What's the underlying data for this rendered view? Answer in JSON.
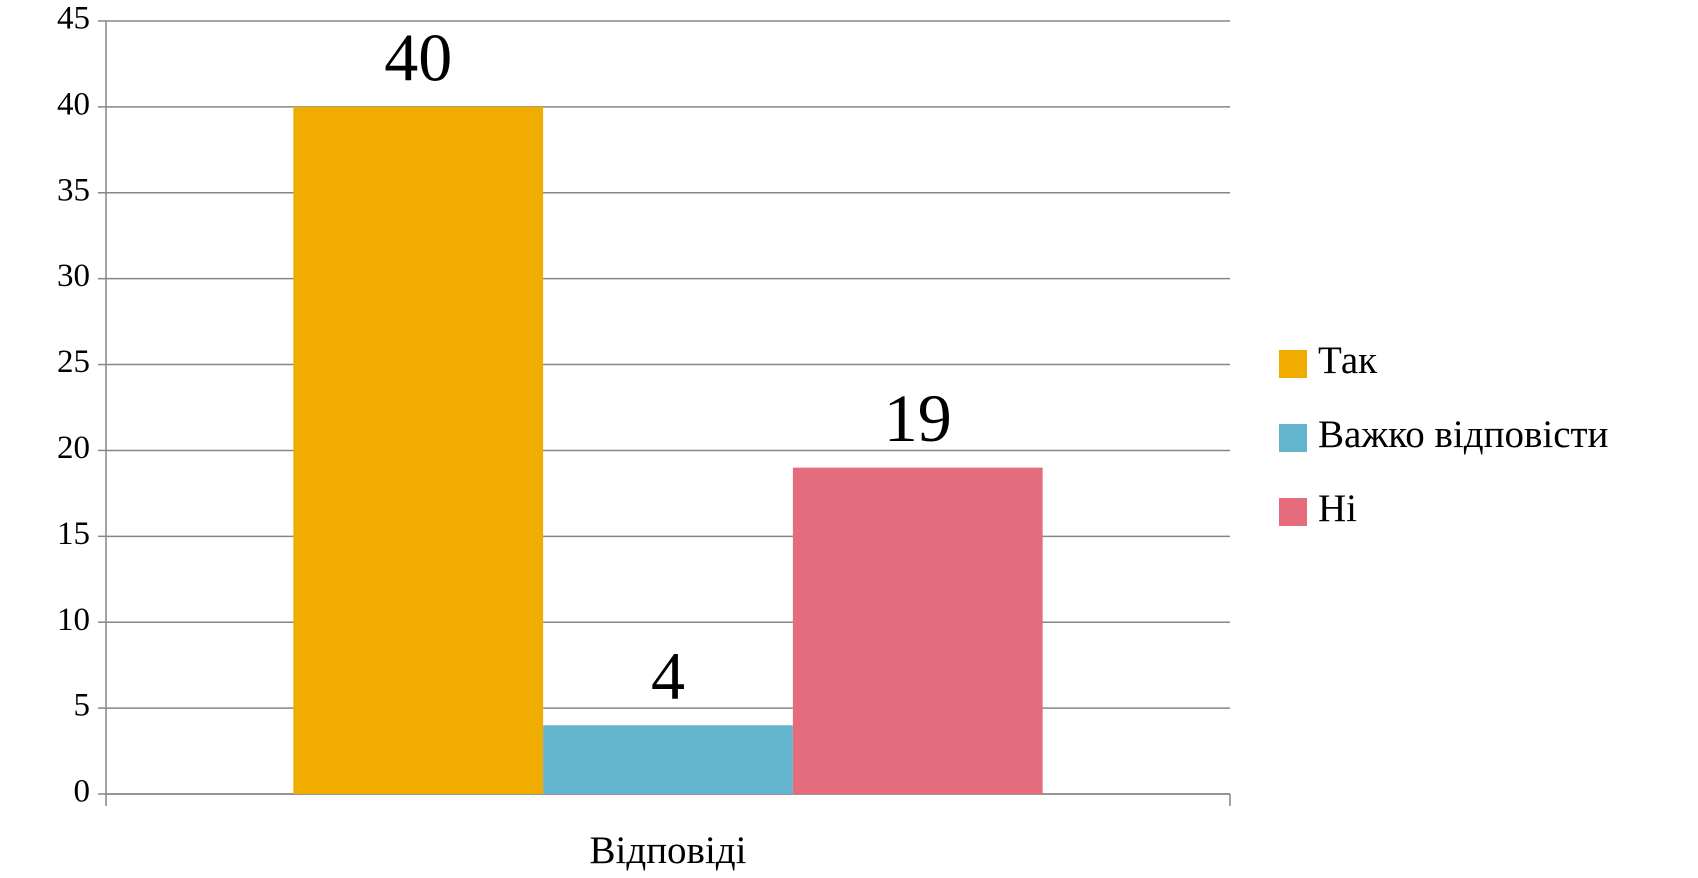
{
  "chart_data": {
    "type": "bar",
    "categories": [
      "Відповіді"
    ],
    "series": [
      {
        "name": "Так",
        "color": "#f0ad00",
        "values": [
          40
        ]
      },
      {
        "name": "Важко відповісти",
        "color": "#62b5cc",
        "values": [
          4
        ]
      },
      {
        "name": "Ні",
        "color": "#e56c7d",
        "values": [
          19
        ]
      }
    ],
    "ylim": [
      0,
      45
    ],
    "yticks": [
      0,
      5,
      10,
      15,
      20,
      25,
      30,
      35,
      40,
      45
    ],
    "grid": true,
    "legend": "right",
    "data_labels": true
  }
}
